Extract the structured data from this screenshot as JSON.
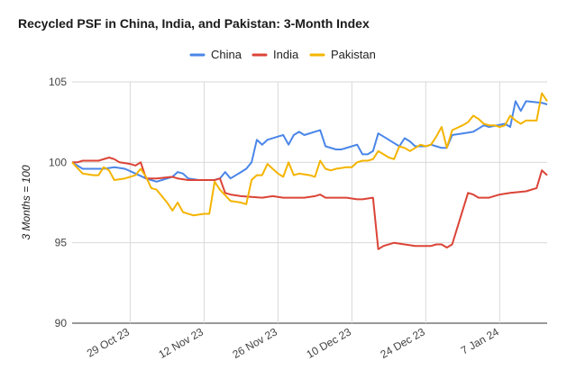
{
  "chart_data": {
    "type": "line",
    "title": "Recycled PSF in China, India, and Pakistan: 3-Month Index",
    "ylabel": "3 Months = 100",
    "xlabel": "",
    "ylim": [
      90,
      105
    ],
    "yticks": [
      90,
      95,
      100,
      105
    ],
    "xticks": [
      {
        "label": "29 Oct 23",
        "index": 11
      },
      {
        "label": "12 Nov 23",
        "index": 25
      },
      {
        "label": "26 Nov 23",
        "index": 39
      },
      {
        "label": "10 Dec 23",
        "index": 53
      },
      {
        "label": "24 Dec 23",
        "index": 67
      },
      {
        "label": "7 Jan 24",
        "index": 81
      }
    ],
    "x_start": "18 Oct 23",
    "x_end": "16 Jan 24",
    "grid": true,
    "legend_position": "top",
    "series": [
      {
        "name": "China",
        "color": "#4a86e8",
        "points": [
          [
            0,
            100
          ],
          [
            2,
            99.6
          ],
          [
            5,
            99.6
          ],
          [
            6,
            99.6
          ],
          [
            8,
            99.7
          ],
          [
            10,
            99.6
          ],
          [
            12,
            99.3
          ],
          [
            14,
            99.0
          ],
          [
            15,
            98.9
          ],
          [
            16,
            98.8
          ],
          [
            17,
            98.9
          ],
          [
            19,
            99.1
          ],
          [
            20,
            99.4
          ],
          [
            21,
            99.3
          ],
          [
            22,
            99.0
          ],
          [
            24,
            98.9
          ],
          [
            27,
            98.9
          ],
          [
            28,
            99.0
          ],
          [
            29,
            99.4
          ],
          [
            30,
            99.0
          ],
          [
            32,
            99.4
          ],
          [
            33,
            99.6
          ],
          [
            34,
            100.0
          ],
          [
            35,
            101.4
          ],
          [
            36,
            101.1
          ],
          [
            37,
            101.4
          ],
          [
            39,
            101.6
          ],
          [
            40,
            101.7
          ],
          [
            41,
            101.1
          ],
          [
            42,
            101.7
          ],
          [
            43,
            101.9
          ],
          [
            44,
            101.7
          ],
          [
            47,
            102.0
          ],
          [
            48,
            101.0
          ],
          [
            50,
            100.8
          ],
          [
            51,
            100.8
          ],
          [
            53,
            101.0
          ],
          [
            54,
            101.1
          ],
          [
            55,
            100.5
          ],
          [
            56,
            100.5
          ],
          [
            57,
            100.7
          ],
          [
            58,
            101.8
          ],
          [
            59,
            101.6
          ],
          [
            60,
            101.4
          ],
          [
            62,
            101.0
          ],
          [
            63,
            101.5
          ],
          [
            64,
            101.3
          ],
          [
            65,
            101.0
          ],
          [
            66,
            101.0
          ],
          [
            67,
            101.0
          ],
          [
            68,
            101.1
          ],
          [
            69,
            101.0
          ],
          [
            70,
            100.9
          ],
          [
            71,
            100.9
          ],
          [
            72,
            101.7
          ],
          [
            74,
            101.8
          ],
          [
            76,
            101.9
          ],
          [
            77,
            102.1
          ],
          [
            78,
            102.3
          ],
          [
            79,
            102.2
          ],
          [
            82,
            102.4
          ],
          [
            83,
            102.2
          ],
          [
            84,
            103.8
          ],
          [
            85,
            103.2
          ],
          [
            86,
            103.8
          ],
          [
            89,
            103.7
          ],
          [
            90,
            103.6
          ]
        ]
      },
      {
        "name": "India",
        "color": "#db4437",
        "points": [
          [
            0,
            100
          ],
          [
            1,
            100.0
          ],
          [
            2,
            100.1
          ],
          [
            5,
            100.1
          ],
          [
            7,
            100.3
          ],
          [
            8,
            100.2
          ],
          [
            9,
            100.0
          ],
          [
            11,
            99.9
          ],
          [
            12,
            99.8
          ],
          [
            13,
            100.0
          ],
          [
            14,
            99.0
          ],
          [
            16,
            99.0
          ],
          [
            19,
            99.1
          ],
          [
            20,
            99.0
          ],
          [
            22,
            98.9
          ],
          [
            25,
            98.9
          ],
          [
            27,
            98.9
          ],
          [
            28,
            99.0
          ],
          [
            29,
            98.1
          ],
          [
            30,
            98.0
          ],
          [
            32,
            97.9
          ],
          [
            36,
            97.8
          ],
          [
            38,
            97.9
          ],
          [
            40,
            97.8
          ],
          [
            42,
            97.8
          ],
          [
            44,
            97.8
          ],
          [
            46,
            97.9
          ],
          [
            47,
            98.0
          ],
          [
            48,
            97.8
          ],
          [
            50,
            97.8
          ],
          [
            52,
            97.8
          ],
          [
            54,
            97.7
          ],
          [
            55,
            97.7
          ],
          [
            57,
            97.8
          ],
          [
            58,
            94.6
          ],
          [
            59,
            94.8
          ],
          [
            61,
            95.0
          ],
          [
            63,
            94.9
          ],
          [
            65,
            94.8
          ],
          [
            67,
            94.8
          ],
          [
            68,
            94.8
          ],
          [
            69,
            94.9
          ],
          [
            70,
            94.9
          ],
          [
            71,
            94.7
          ],
          [
            72,
            94.9
          ],
          [
            75,
            98.1
          ],
          [
            76,
            98.0
          ],
          [
            77,
            97.8
          ],
          [
            79,
            97.8
          ],
          [
            81,
            98.0
          ],
          [
            83,
            98.1
          ],
          [
            86,
            98.2
          ],
          [
            88,
            98.4
          ],
          [
            89,
            99.5
          ],
          [
            90,
            99.2
          ]
        ]
      },
      {
        "name": "Pakistan",
        "color": "#f4b400",
        "points": [
          [
            0,
            100
          ],
          [
            2,
            99.3
          ],
          [
            4,
            99.2
          ],
          [
            5,
            99.2
          ],
          [
            6,
            99.7
          ],
          [
            7,
            99.5
          ],
          [
            8,
            98.9
          ],
          [
            10,
            99.0
          ],
          [
            11,
            99.1
          ],
          [
            12,
            99.2
          ],
          [
            13,
            99.6
          ],
          [
            14,
            99.1
          ],
          [
            15,
            98.4
          ],
          [
            16,
            98.3
          ],
          [
            18,
            97.5
          ],
          [
            19,
            97.0
          ],
          [
            20,
            97.5
          ],
          [
            21,
            96.9
          ],
          [
            23,
            96.7
          ],
          [
            25,
            96.8
          ],
          [
            26,
            96.8
          ],
          [
            27,
            98.8
          ],
          [
            28,
            98.3
          ],
          [
            30,
            97.6
          ],
          [
            32,
            97.5
          ],
          [
            33,
            97.4
          ],
          [
            34,
            98.9
          ],
          [
            35,
            99.2
          ],
          [
            36,
            99.2
          ],
          [
            37,
            99.9
          ],
          [
            38,
            99.6
          ],
          [
            39,
            99.3
          ],
          [
            40,
            99.1
          ],
          [
            41,
            100.0
          ],
          [
            42,
            99.2
          ],
          [
            43,
            99.3
          ],
          [
            45,
            99.2
          ],
          [
            46,
            99.1
          ],
          [
            47,
            100.1
          ],
          [
            48,
            99.6
          ],
          [
            49,
            99.5
          ],
          [
            50,
            99.6
          ],
          [
            52,
            99.7
          ],
          [
            53,
            99.7
          ],
          [
            54,
            100.0
          ],
          [
            55,
            100.1
          ],
          [
            56,
            100.1
          ],
          [
            57,
            100.2
          ],
          [
            58,
            100.7
          ],
          [
            59,
            100.5
          ],
          [
            60,
            100.3
          ],
          [
            61,
            100.2
          ],
          [
            62,
            101.0
          ],
          [
            63,
            100.9
          ],
          [
            64,
            100.7
          ],
          [
            65,
            100.9
          ],
          [
            66,
            101.1
          ],
          [
            67,
            101.0
          ],
          [
            68,
            101.1
          ],
          [
            69,
            101.6
          ],
          [
            70,
            102.2
          ],
          [
            71,
            100.9
          ],
          [
            72,
            102.0
          ],
          [
            74,
            102.3
          ],
          [
            75,
            102.5
          ],
          [
            76,
            102.9
          ],
          [
            77,
            102.7
          ],
          [
            78,
            102.4
          ],
          [
            79,
            102.3
          ],
          [
            80,
            102.3
          ],
          [
            81,
            102.2
          ],
          [
            82,
            102.3
          ],
          [
            83,
            102.9
          ],
          [
            84,
            102.6
          ],
          [
            85,
            102.4
          ],
          [
            86,
            102.6
          ],
          [
            87,
            102.6
          ],
          [
            88,
            102.6
          ],
          [
            89,
            104.3
          ],
          [
            90,
            103.8
          ]
        ]
      }
    ]
  }
}
